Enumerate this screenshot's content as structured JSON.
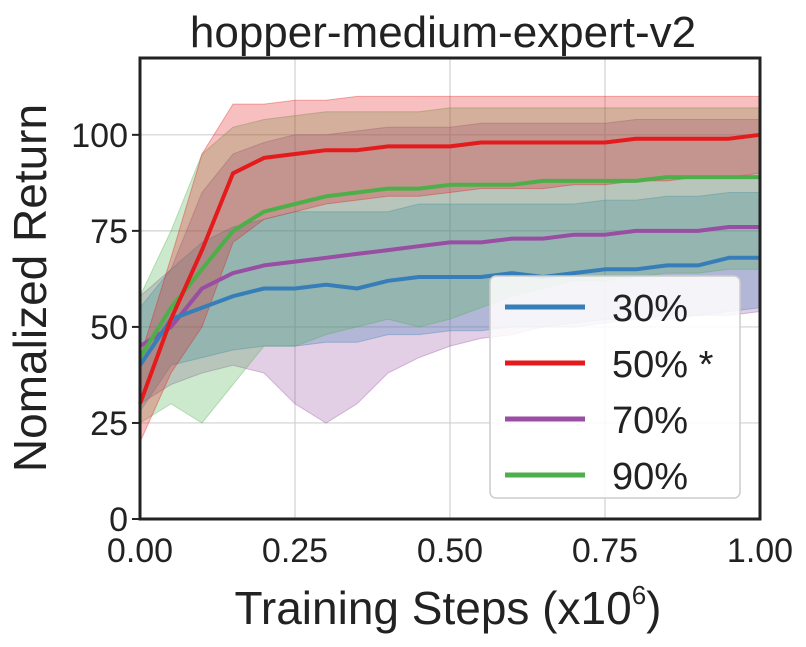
{
  "chart_data": {
    "type": "line",
    "title": "hopper-medium-expert-v2",
    "xlabel": "Training Steps (x",
    "xlabel_exponent": "10",
    "xlabel_power": "6",
    "xlabel_suffix": ")",
    "ylabel": "Nomalized Return",
    "xlim": [
      0,
      1.0
    ],
    "ylim": [
      0,
      120
    ],
    "xticks": [
      "0.00",
      "0.25",
      "0.50",
      "0.75",
      "1.00"
    ],
    "yticks": [
      "0",
      "25",
      "50",
      "75",
      "100"
    ],
    "grid": true,
    "legend_position": "bottom-right",
    "x": [
      0.0,
      0.05,
      0.1,
      0.15,
      0.2,
      0.25,
      0.3,
      0.35,
      0.4,
      0.45,
      0.5,
      0.55,
      0.6,
      0.65,
      0.7,
      0.75,
      0.8,
      0.85,
      0.9,
      0.95,
      1.0
    ],
    "series": [
      {
        "name": "30%",
        "color": "#377eb8",
        "values": [
          40,
          52,
          55,
          58,
          60,
          60,
          61,
          60,
          62,
          63,
          63,
          63,
          64,
          63,
          64,
          65,
          65,
          66,
          66,
          68,
          68
        ],
        "lower": [
          28,
          40,
          42,
          44,
          45,
          45,
          46,
          46,
          48,
          48,
          49,
          49,
          50,
          50,
          51,
          52,
          52,
          53,
          53,
          54,
          55
        ],
        "upper": [
          55,
          65,
          72,
          76,
          78,
          80,
          80,
          80,
          80,
          82,
          82,
          82,
          82,
          82,
          82,
          83,
          83,
          84,
          84,
          85,
          85
        ]
      },
      {
        "name": "50% *",
        "color": "#e41a1c",
        "values": [
          30,
          52,
          70,
          90,
          94,
          95,
          96,
          96,
          97,
          97,
          97,
          98,
          98,
          98,
          98,
          98,
          99,
          99,
          99,
          99,
          100
        ],
        "lower": [
          20,
          38,
          50,
          72,
          78,
          80,
          82,
          83,
          84,
          84,
          85,
          86,
          86,
          86,
          87,
          87,
          88,
          88,
          89,
          89,
          90
        ],
        "upper": [
          42,
          68,
          95,
          108,
          108,
          109,
          109,
          110,
          110,
          110,
          110,
          110,
          110,
          110,
          110,
          110,
          110,
          110,
          110,
          110,
          110
        ]
      },
      {
        "name": "70%",
        "color": "#984ea3",
        "values": [
          45,
          50,
          60,
          64,
          66,
          67,
          68,
          69,
          70,
          71,
          72,
          72,
          73,
          73,
          74,
          74,
          75,
          75,
          75,
          76,
          76
        ],
        "lower": [
          30,
          35,
          38,
          40,
          38,
          30,
          25,
          30,
          38,
          42,
          45,
          47,
          48,
          50,
          50,
          51,
          52,
          52,
          53,
          53,
          54
        ],
        "upper": [
          58,
          65,
          85,
          95,
          98,
          100,
          100,
          101,
          102,
          102,
          102,
          103,
          103,
          103,
          103,
          103,
          104,
          104,
          104,
          104,
          104
        ]
      },
      {
        "name": "90%",
        "color": "#4daf4a",
        "values": [
          42,
          55,
          65,
          75,
          80,
          82,
          84,
          85,
          86,
          86,
          87,
          87,
          87,
          88,
          88,
          88,
          88,
          89,
          89,
          89,
          89
        ],
        "lower": [
          25,
          30,
          25,
          35,
          45,
          45,
          48,
          50,
          52,
          50,
          52,
          55,
          58,
          60,
          62,
          62,
          63,
          64,
          64,
          65,
          65
        ],
        "upper": [
          58,
          75,
          95,
          102,
          104,
          105,
          106,
          106,
          106,
          106,
          107,
          107,
          107,
          107,
          107,
          107,
          107,
          107,
          107,
          107,
          107
        ]
      }
    ]
  }
}
